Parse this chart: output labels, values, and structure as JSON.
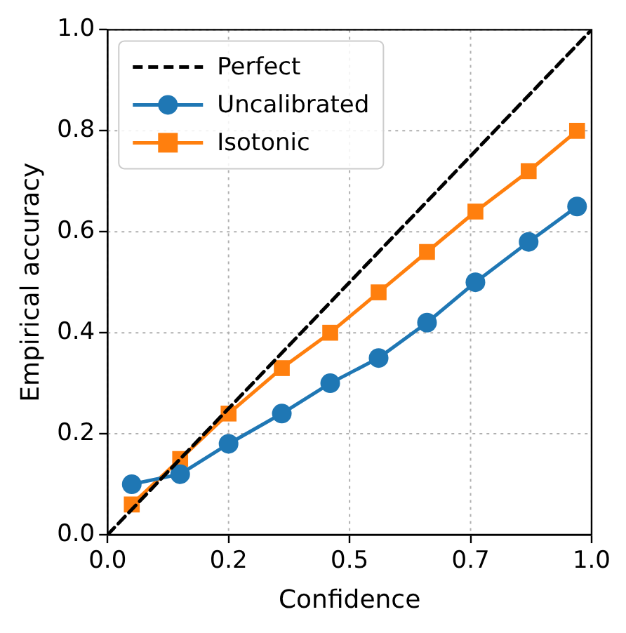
{
  "chart_data": {
    "type": "line",
    "xlabel": "Confidence",
    "ylabel": "Empirical accuracy",
    "xlim": [
      0,
      1
    ],
    "ylim": [
      0,
      1
    ],
    "xticks": [
      {
        "value": 0,
        "label": "0.0"
      },
      {
        "value": 0.25,
        "label": "0.2"
      },
      {
        "value": 0.5,
        "label": "0.5"
      },
      {
        "value": 0.75,
        "label": "0.7"
      },
      {
        "value": 1,
        "label": "1.0"
      }
    ],
    "yticks": [
      {
        "value": 0,
        "label": "0.0"
      },
      {
        "value": 0.2,
        "label": "0.2"
      },
      {
        "value": 0.4,
        "label": "0.4"
      },
      {
        "value": 0.6,
        "label": "0.6"
      },
      {
        "value": 0.8,
        "label": "0.8"
      },
      {
        "value": 1,
        "label": "1.0"
      }
    ],
    "grid": true,
    "legend": "top left",
    "series": [
      {
        "name": "Perfect",
        "color": "#000000",
        "line_style": "dashed",
        "marker": "none",
        "x": [
          0,
          1
        ],
        "values": [
          0,
          1
        ]
      },
      {
        "name": "Uncalibrated",
        "color": "#1f77b4",
        "line_style": "solid",
        "marker": "circle",
        "x": [
          0.05,
          0.15,
          0.25,
          0.36,
          0.46,
          0.56,
          0.66,
          0.76,
          0.87,
          0.97
        ],
        "values": [
          0.1,
          0.12,
          0.18,
          0.24,
          0.3,
          0.35,
          0.42,
          0.5,
          0.58,
          0.65
        ]
      },
      {
        "name": "Isotonic",
        "color": "#ff7f0e",
        "line_style": "solid",
        "marker": "square",
        "x": [
          0.05,
          0.15,
          0.25,
          0.36,
          0.46,
          0.56,
          0.66,
          0.76,
          0.87,
          0.97
        ],
        "values": [
          0.06,
          0.15,
          0.24,
          0.33,
          0.4,
          0.48,
          0.56,
          0.64,
          0.72,
          0.8
        ]
      }
    ]
  }
}
